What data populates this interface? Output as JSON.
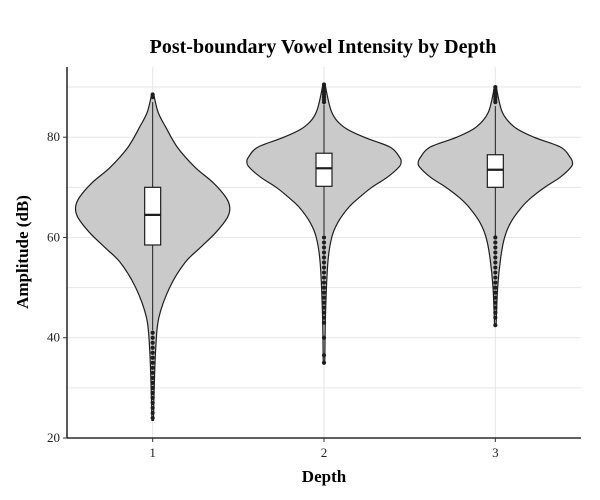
{
  "chart_data": {
    "type": "violin",
    "title": "Post-boundary Vowel Intensity by Depth",
    "xlabel": "Depth",
    "ylabel": "Amplitude (dB)",
    "categories": [
      "1",
      "2",
      "3"
    ],
    "ylim": [
      20,
      94
    ],
    "yticks": [
      20,
      40,
      60,
      80
    ],
    "grid": true,
    "legend": "none",
    "series": [
      {
        "category": "1",
        "min": 23.5,
        "q1": 58.5,
        "median": 64.5,
        "q3": 70,
        "max": 88.8,
        "whisker_low": 41.5,
        "whisker_high": 87,
        "density": [
          [
            23.5,
            0.01
          ],
          [
            30,
            0.02
          ],
          [
            38,
            0.04
          ],
          [
            44,
            0.08
          ],
          [
            50,
            0.22
          ],
          [
            55,
            0.42
          ],
          [
            58,
            0.62
          ],
          [
            61,
            0.82
          ],
          [
            64,
            0.97
          ],
          [
            66,
            1.0
          ],
          [
            68,
            0.95
          ],
          [
            71,
            0.78
          ],
          [
            74,
            0.55
          ],
          [
            78,
            0.32
          ],
          [
            82,
            0.17
          ],
          [
            85,
            0.07
          ],
          [
            88.8,
            0.01
          ]
        ],
        "outliers": [
          24,
          25,
          26,
          27,
          28,
          29,
          30,
          31,
          32,
          33,
          34,
          35,
          36,
          37,
          38,
          39,
          40,
          41,
          88,
          88.5
        ]
      },
      {
        "category": "2",
        "min": 34.8,
        "q1": 70.2,
        "median": 73.8,
        "q3": 76.8,
        "max": 90.8,
        "whisker_low": 60.5,
        "whisker_high": 86.5,
        "density": [
          [
            34.8,
            0.01
          ],
          [
            45,
            0.02
          ],
          [
            55,
            0.05
          ],
          [
            60,
            0.1
          ],
          [
            63,
            0.18
          ],
          [
            66,
            0.32
          ],
          [
            68,
            0.46
          ],
          [
            70,
            0.62
          ],
          [
            72,
            0.82
          ],
          [
            74,
            0.97
          ],
          [
            75,
            1.0
          ],
          [
            76,
            0.98
          ],
          [
            78,
            0.86
          ],
          [
            80,
            0.52
          ],
          [
            82,
            0.26
          ],
          [
            85,
            0.1
          ],
          [
            90.8,
            0.01
          ]
        ],
        "outliers": [
          35,
          36.5,
          40,
          43,
          44,
          45,
          46,
          47,
          48,
          49,
          50,
          51,
          52,
          53,
          54,
          55,
          56,
          57,
          58,
          59,
          60,
          87,
          87.5,
          88,
          88.5,
          89,
          89.5,
          90,
          90.5
        ]
      },
      {
        "category": "3",
        "min": 42.5,
        "q1": 70,
        "median": 73.5,
        "q3": 76.5,
        "max": 90.2,
        "whisker_low": 60.2,
        "whisker_high": 86.2,
        "density": [
          [
            42.5,
            0.01
          ],
          [
            50,
            0.03
          ],
          [
            56,
            0.07
          ],
          [
            60,
            0.12
          ],
          [
            63,
            0.2
          ],
          [
            66,
            0.34
          ],
          [
            68,
            0.47
          ],
          [
            70,
            0.64
          ],
          [
            72,
            0.84
          ],
          [
            74,
            0.98
          ],
          [
            75,
            1.0
          ],
          [
            76,
            0.97
          ],
          [
            78,
            0.85
          ],
          [
            80,
            0.5
          ],
          [
            82,
            0.25
          ],
          [
            85,
            0.09
          ],
          [
            90.2,
            0.01
          ]
        ],
        "outliers": [
          42.5,
          44,
          45,
          46,
          47,
          48,
          49,
          50,
          51,
          52,
          53,
          54,
          55,
          56,
          57,
          58,
          59,
          60,
          87,
          87.5,
          88,
          88.5,
          89,
          89.5,
          90
        ]
      }
    ]
  }
}
